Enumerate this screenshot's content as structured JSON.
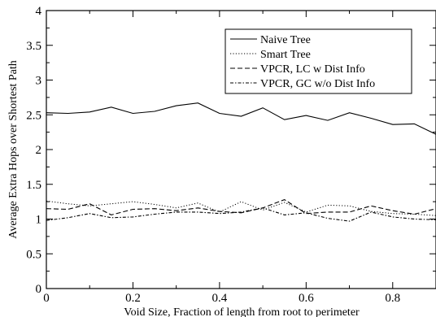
{
  "chart_data": {
    "type": "line",
    "xlabel": "Void Size, Fraction of length from root to perimeter",
    "ylabel": "Average Extra Hops over Shortest Path",
    "xlim": [
      0,
      0.9
    ],
    "ylim": [
      0,
      4
    ],
    "x_ticks": [
      0,
      0.2,
      0.4,
      0.6,
      0.8
    ],
    "x_tick_labels": [
      "0",
      "0.2",
      "0.4",
      "0.6",
      "0.8"
    ],
    "y_ticks": [
      0,
      0.5,
      1,
      1.5,
      2,
      2.5,
      3,
      3.5,
      4
    ],
    "y_tick_labels": [
      "0",
      "0.5",
      "1",
      "1.5",
      "2",
      "2.5",
      "3",
      "3.5",
      "4"
    ],
    "grid": false,
    "legend_position": "top-right",
    "x": [
      0,
      0.05,
      0.1,
      0.15,
      0.2,
      0.25,
      0.3,
      0.35,
      0.4,
      0.45,
      0.5,
      0.55,
      0.6,
      0.65,
      0.7,
      0.75,
      0.8,
      0.85,
      0.9
    ],
    "series": [
      {
        "name": "Naive Tree",
        "dash": "solid",
        "values": [
          2.53,
          2.52,
          2.54,
          2.61,
          2.52,
          2.55,
          2.63,
          2.67,
          2.52,
          2.48,
          2.6,
          2.43,
          2.49,
          2.42,
          2.53,
          2.45,
          2.36,
          2.37,
          2.22
        ]
      },
      {
        "name": "Smart Tree",
        "dash": "dotted",
        "values": [
          1.26,
          1.22,
          1.19,
          1.22,
          1.25,
          1.21,
          1.16,
          1.23,
          1.1,
          1.25,
          1.13,
          1.24,
          1.1,
          1.2,
          1.19,
          1.11,
          1.08,
          1.07,
          1.05
        ]
      },
      {
        "name": "VPCR, LC w Dist Info",
        "dash": "dashed",
        "values": [
          1.15,
          1.14,
          1.22,
          1.06,
          1.14,
          1.15,
          1.12,
          1.16,
          1.11,
          1.09,
          1.16,
          1.28,
          1.08,
          1.1,
          1.1,
          1.19,
          1.12,
          1.07,
          1.15
        ]
      },
      {
        "name": "VPCR, GC w/o Dist Info",
        "dash": "dashdot",
        "values": [
          0.98,
          1.02,
          1.08,
          1.02,
          1.03,
          1.07,
          1.1,
          1.1,
          1.08,
          1.1,
          1.16,
          1.06,
          1.09,
          1.01,
          0.97,
          1.1,
          1.03,
          1.0,
          0.99
        ]
      }
    ]
  }
}
